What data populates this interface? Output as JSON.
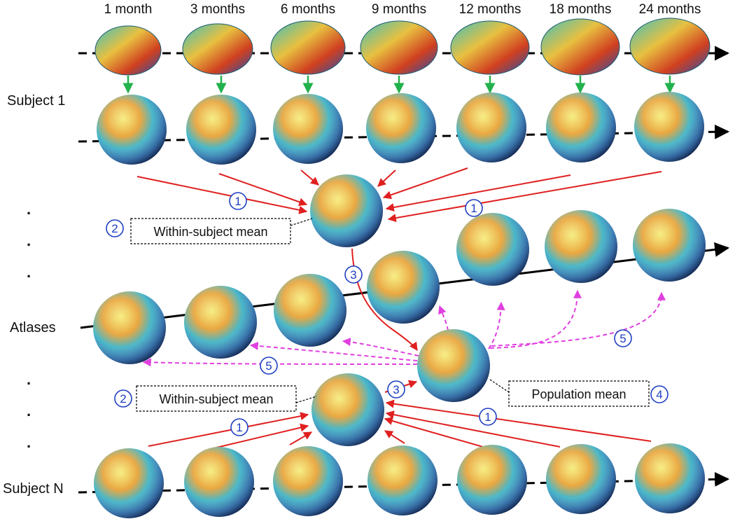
{
  "ages": [
    "1 month",
    "3 months",
    "6 months",
    "9 months",
    "12 months",
    "18 months",
    "24 months"
  ],
  "rows": {
    "subject_1": "Subject 1",
    "atlases": "Atlases",
    "subject_n": "Subject N",
    "ellipsis": "."
  },
  "boxes": {
    "within_top": "Within-subject mean",
    "within_bottom": "Within-subject mean",
    "population": "Population mean"
  },
  "steps": {
    "one": "1",
    "two": "2",
    "three": "3",
    "four": "4",
    "five": "5"
  },
  "colors": {
    "red_arrow": "#e02020",
    "green_arrow": "#22b14c",
    "magenta_arrow": "#e040e0",
    "step_circle": "#1f3fc2"
  }
}
